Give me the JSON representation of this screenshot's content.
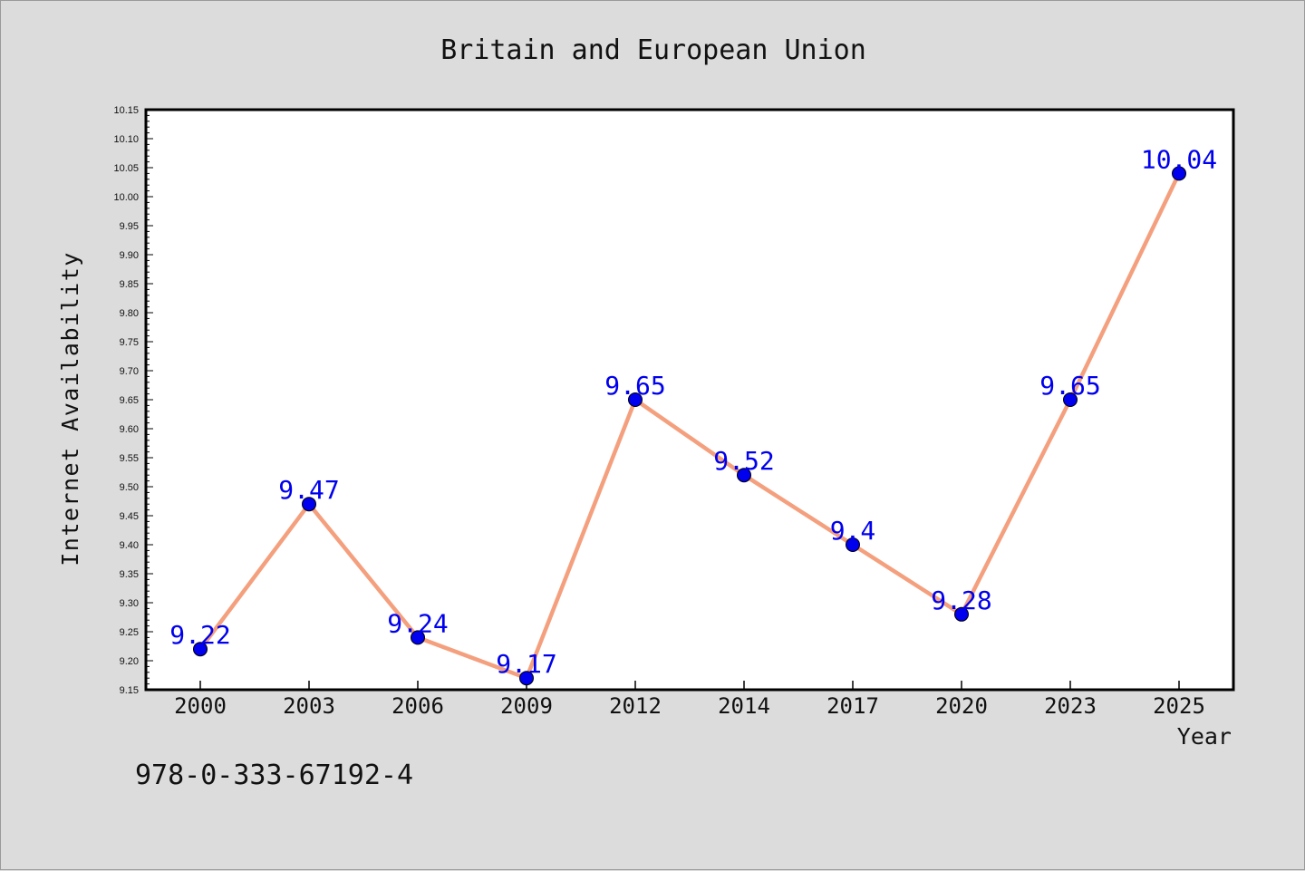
{
  "chart_data": {
    "type": "line",
    "title": "Britain and European Union",
    "xlabel": "Year",
    "ylabel": "Internet Availability",
    "categories": [
      "2000",
      "2003",
      "2006",
      "2009",
      "2012",
      "2014",
      "2017",
      "2020",
      "2023",
      "2025"
    ],
    "series": [
      {
        "values": [
          9.22,
          9.47,
          9.24,
          9.17,
          9.65,
          9.52,
          9.4,
          9.28,
          9.65,
          10.04
        ],
        "labels": [
          "9.22",
          "9.47",
          "9.24",
          "9.17",
          "9.65",
          "9.52",
          "9.4",
          "9.28",
          "9.65",
          "10.04"
        ],
        "line_color": "#f4a07e",
        "marker_color": "#0000ee",
        "label_color": "#0000ee"
      }
    ],
    "ylim": [
      9.15,
      10.15
    ],
    "yticks": [
      "9.15",
      "9.20",
      "9.25",
      "9.30",
      "9.35",
      "9.40",
      "9.45",
      "9.50",
      "9.55",
      "9.60",
      "9.65",
      "9.70",
      "9.75",
      "9.80",
      "9.85",
      "9.90",
      "9.95",
      "10.00",
      "10.05",
      "10.10",
      "10.15"
    ],
    "grid": false,
    "legend": "none"
  },
  "footer": {
    "isbn": "978-0-333-67192-4"
  }
}
